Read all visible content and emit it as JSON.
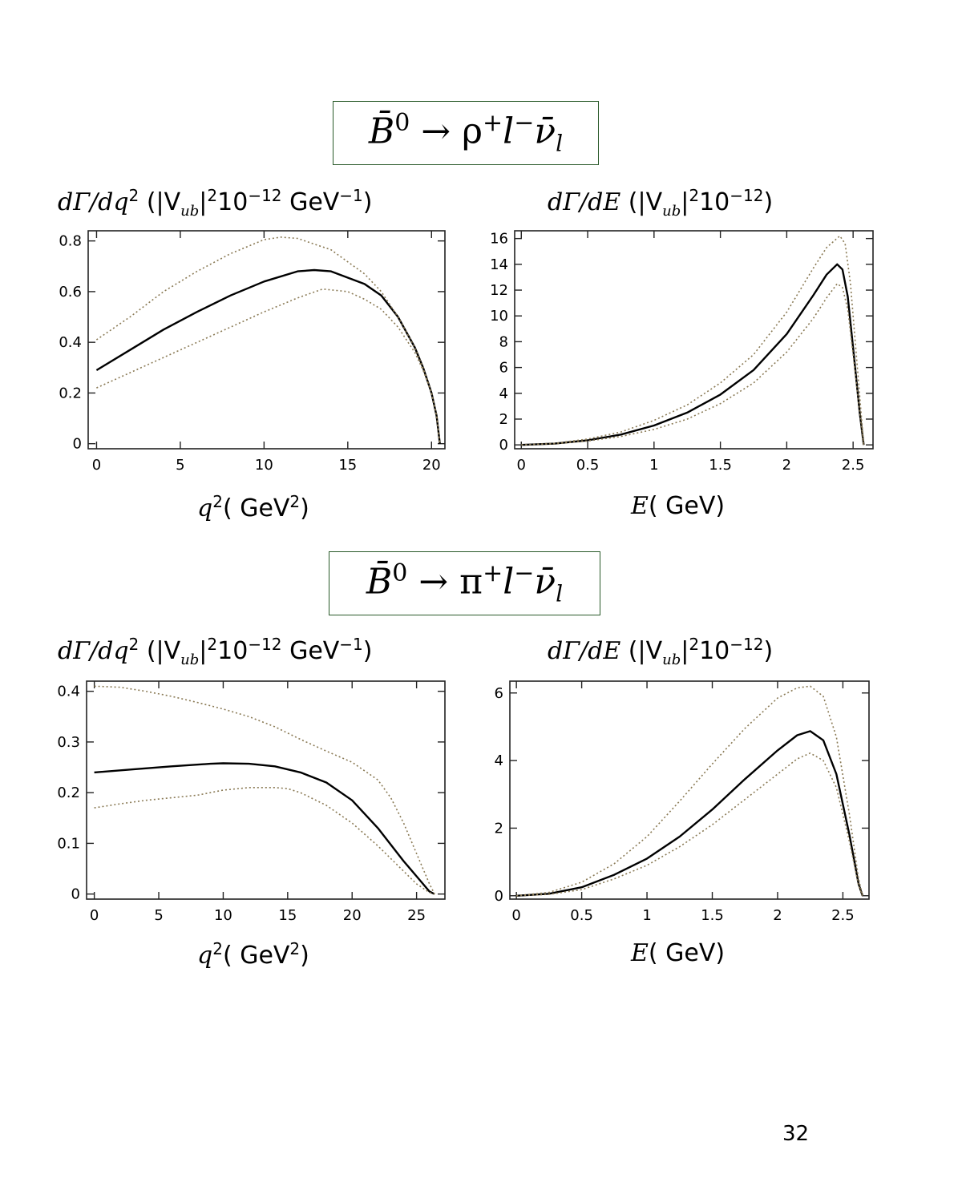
{
  "page_number": "32",
  "sections": [
    {
      "title": {
        "pre": "B̄",
        "sup1": "0",
        "mid": " → ρ",
        "sup2": "+",
        "post": "l",
        "sup3": "−",
        "post2": "ν̄",
        "sub": "l"
      }
    },
    {
      "title": {
        "pre": "B̄",
        "sup1": "0",
        "mid": " → π",
        "sup2": "+",
        "post": "l",
        "sup3": "−",
        "post2": "ν̄",
        "sub": "l"
      }
    }
  ],
  "labels": {
    "q2_title": {
      "a": "dΓ/dq",
      "b": "2",
      "c": " (|V",
      "d": "ub",
      "e": "|",
      "f": "2",
      "g": "10",
      "h": "−12",
      "i": " GeV",
      "j": "−1",
      "k": ")"
    },
    "e_title": {
      "a": "dΓ/dE",
      "c": " (|V",
      "d": "ub",
      "e": "|",
      "f": "2",
      "g": "10",
      "h": "−12",
      "k": ")"
    },
    "q2_xlabel": {
      "a": "q",
      "b": "2",
      "c": "( GeV",
      "d": "2",
      "e": ")"
    },
    "e_xlabel": {
      "a": "E",
      "c": "( GeV)"
    }
  },
  "colors": {
    "central": "#000000",
    "band": "#8a7a55"
  },
  "chart_data": [
    {
      "id": "rho-q2",
      "type": "line",
      "xlim": [
        -0.5,
        20.8
      ],
      "ylim": [
        -0.02,
        0.84
      ],
      "xticks": [
        0,
        5,
        10,
        15,
        20
      ],
      "yticks": [
        0,
        0.2,
        0.4,
        0.6,
        0.8
      ],
      "xtick_labels": [
        "0",
        "5",
        "10",
        "15",
        "20"
      ],
      "ytick_labels": [
        "0",
        "0.2",
        "0.4",
        "0.6",
        "0.8"
      ],
      "series": [
        {
          "style": "solid",
          "x": [
            0,
            2,
            4,
            6,
            8,
            10,
            12,
            13,
            14,
            16,
            17,
            18,
            19,
            19.5,
            20,
            20.3,
            20.5
          ],
          "y": [
            0.29,
            0.37,
            0.45,
            0.52,
            0.585,
            0.64,
            0.68,
            0.685,
            0.68,
            0.63,
            0.585,
            0.5,
            0.38,
            0.3,
            0.2,
            0.11,
            0
          ]
        },
        {
          "style": "dotted",
          "x": [
            0,
            2,
            4,
            6,
            8,
            10,
            11,
            12,
            14,
            16,
            17,
            18,
            19,
            19.5,
            20,
            20.3,
            20.5
          ],
          "y": [
            0.41,
            0.5,
            0.6,
            0.68,
            0.75,
            0.805,
            0.815,
            0.81,
            0.765,
            0.67,
            0.6,
            0.5,
            0.38,
            0.3,
            0.2,
            0.11,
            0
          ]
        },
        {
          "style": "dotted",
          "x": [
            0,
            2,
            4,
            6,
            8,
            10,
            12,
            13.5,
            15,
            16,
            17,
            18,
            19,
            19.5,
            20,
            20.3,
            20.5
          ],
          "y": [
            0.22,
            0.28,
            0.34,
            0.4,
            0.46,
            0.52,
            0.575,
            0.61,
            0.6,
            0.57,
            0.53,
            0.46,
            0.36,
            0.29,
            0.2,
            0.11,
            0
          ]
        }
      ]
    },
    {
      "id": "rho-e",
      "type": "line",
      "xlim": [
        -0.05,
        2.65
      ],
      "ylim": [
        -0.3,
        16.6
      ],
      "xticks": [
        0,
        0.5,
        1,
        1.5,
        2,
        2.5
      ],
      "yticks": [
        0,
        2,
        4,
        6,
        8,
        10,
        12,
        14,
        16
      ],
      "xtick_labels": [
        "0",
        "0.5",
        "1",
        "1.5",
        "2",
        "2.5"
      ],
      "ytick_labels": [
        "0",
        "2",
        "4",
        "6",
        "8",
        "10",
        "12",
        "14",
        "16"
      ],
      "series": [
        {
          "style": "solid",
          "x": [
            0,
            0.25,
            0.5,
            0.75,
            1,
            1.25,
            1.5,
            1.75,
            2,
            2.2,
            2.3,
            2.38,
            2.42,
            2.46,
            2.5,
            2.55,
            2.58
          ],
          "y": [
            0,
            0.1,
            0.35,
            0.8,
            1.5,
            2.5,
            3.9,
            5.8,
            8.6,
            11.6,
            13.2,
            14.0,
            13.6,
            11.5,
            7.5,
            2.5,
            0
          ]
        },
        {
          "style": "dotted",
          "x": [
            0,
            0.25,
            0.5,
            0.75,
            1,
            1.25,
            1.5,
            1.75,
            2,
            2.2,
            2.3,
            2.4,
            2.44,
            2.48,
            2.52,
            2.56,
            2.58
          ],
          "y": [
            0,
            0.12,
            0.45,
            1.0,
            1.9,
            3.1,
            4.8,
            7.0,
            10.3,
            13.7,
            15.3,
            16.2,
            15.6,
            12.5,
            7.5,
            2.5,
            0
          ]
        },
        {
          "style": "dotted",
          "x": [
            0,
            0.25,
            0.5,
            0.75,
            1,
            1.25,
            1.5,
            1.75,
            2,
            2.2,
            2.3,
            2.38,
            2.42,
            2.46,
            2.5,
            2.55,
            2.58
          ],
          "y": [
            0,
            0.08,
            0.3,
            0.65,
            1.2,
            2.0,
            3.2,
            4.8,
            7.2,
            9.8,
            11.4,
            12.5,
            12.2,
            10.5,
            7.0,
            2.5,
            0
          ]
        }
      ]
    },
    {
      "id": "pi-q2",
      "type": "line",
      "xlim": [
        -0.6,
        27.2
      ],
      "ylim": [
        -0.01,
        0.42
      ],
      "xticks": [
        0,
        5,
        10,
        15,
        20,
        25
      ],
      "yticks": [
        0,
        0.1,
        0.2,
        0.3,
        0.4
      ],
      "xtick_labels": [
        "0",
        "5",
        "10",
        "15",
        "20",
        "25"
      ],
      "ytick_labels": [
        "0",
        "0.1",
        "0.2",
        "0.3",
        "0.4"
      ],
      "series": [
        {
          "style": "solid",
          "x": [
            0,
            3,
            6,
            9,
            10,
            12,
            14,
            16,
            18,
            20,
            22,
            24,
            25,
            26,
            26.4
          ],
          "y": [
            0.24,
            0.246,
            0.252,
            0.257,
            0.258,
            0.257,
            0.252,
            0.24,
            0.22,
            0.185,
            0.13,
            0.065,
            0.035,
            0.005,
            0
          ]
        },
        {
          "style": "dotted",
          "x": [
            0,
            2,
            4,
            6,
            8,
            10,
            12,
            14,
            16,
            18,
            20,
            22,
            23,
            24,
            25,
            26,
            26.4
          ],
          "y": [
            0.41,
            0.408,
            0.4,
            0.39,
            0.378,
            0.365,
            0.35,
            0.33,
            0.305,
            0.282,
            0.26,
            0.225,
            0.19,
            0.14,
            0.08,
            0.02,
            0
          ]
        },
        {
          "style": "dotted",
          "x": [
            0,
            2,
            4,
            6,
            8,
            10,
            12,
            14,
            15,
            16,
            18,
            20,
            22,
            24,
            25,
            26,
            26.4
          ],
          "y": [
            0.17,
            0.178,
            0.185,
            0.19,
            0.195,
            0.205,
            0.21,
            0.21,
            0.208,
            0.2,
            0.175,
            0.14,
            0.095,
            0.045,
            0.02,
            0.003,
            0
          ]
        }
      ]
    },
    {
      "id": "pi-e",
      "type": "line",
      "xlim": [
        -0.05,
        2.7
      ],
      "ylim": [
        -0.1,
        6.35
      ],
      "xticks": [
        0,
        0.5,
        1,
        1.5,
        2,
        2.5
      ],
      "yticks": [
        0,
        2,
        4,
        6
      ],
      "xtick_labels": [
        "0",
        "0.5",
        "1",
        "1.5",
        "2",
        "2.5"
      ],
      "ytick_labels": [
        "0",
        "2",
        "4",
        "6"
      ],
      "series": [
        {
          "style": "solid",
          "x": [
            0,
            0.25,
            0.5,
            0.75,
            1,
            1.25,
            1.5,
            1.75,
            2,
            2.15,
            2.25,
            2.35,
            2.45,
            2.55,
            2.62,
            2.65
          ],
          "y": [
            0,
            0.06,
            0.25,
            0.62,
            1.1,
            1.75,
            2.55,
            3.45,
            4.3,
            4.75,
            4.87,
            4.6,
            3.6,
            1.8,
            0.35,
            0
          ]
        },
        {
          "style": "dotted",
          "x": [
            0,
            0.25,
            0.5,
            0.75,
            1,
            1.25,
            1.5,
            1.75,
            2,
            2.15,
            2.25,
            2.35,
            2.45,
            2.55,
            2.62,
            2.65
          ],
          "y": [
            0,
            0.1,
            0.4,
            0.95,
            1.75,
            2.8,
            3.9,
            4.95,
            5.85,
            6.15,
            6.2,
            5.9,
            4.7,
            2.4,
            0.5,
            0
          ]
        },
        {
          "style": "dotted",
          "x": [
            0,
            0.25,
            0.5,
            0.75,
            1,
            1.25,
            1.5,
            1.75,
            2,
            2.15,
            2.25,
            2.35,
            2.45,
            2.55,
            2.62,
            2.65
          ],
          "y": [
            0,
            0.04,
            0.18,
            0.5,
            0.9,
            1.45,
            2.1,
            2.85,
            3.6,
            4.05,
            4.22,
            4.0,
            3.2,
            1.6,
            0.3,
            0
          ]
        }
      ]
    }
  ]
}
